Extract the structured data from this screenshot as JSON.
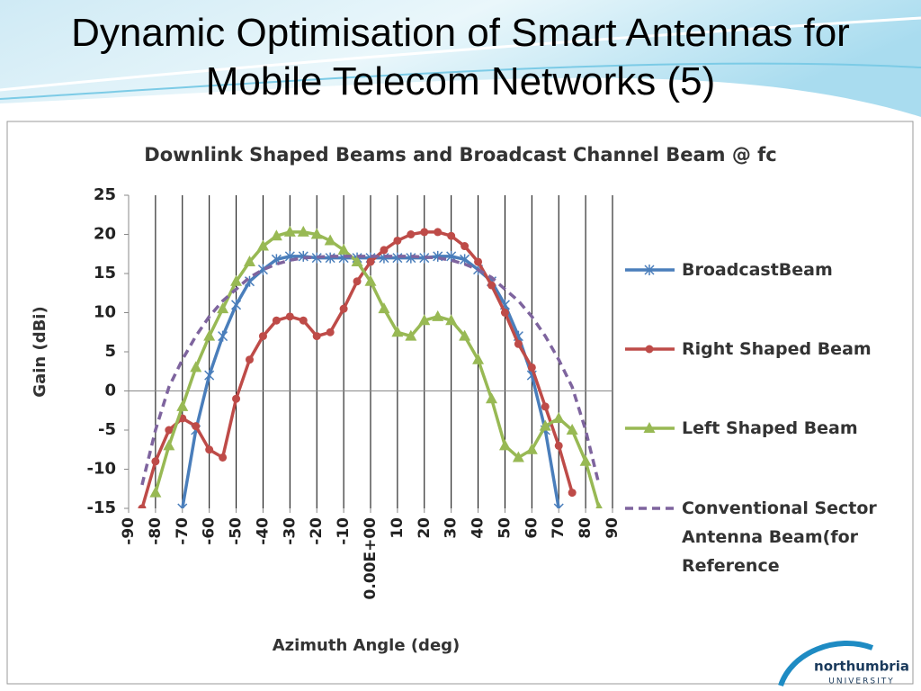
{
  "slide_title": "Dynamic Optimisation of Smart Antennas for Mobile Telecom Networks (5)",
  "logo": {
    "name": "northumbria",
    "sub": "UNIVERSITY"
  },
  "chart_data": {
    "type": "line",
    "title": "Downlink Shaped Beams and Broadcast Channel Beam @ fc",
    "x_label": "Azimuth Angle (deg)",
    "y_label": "Gain (dBi)",
    "x": [
      -85,
      -80,
      -75,
      -70,
      -65,
      -60,
      -55,
      -50,
      -45,
      -40,
      -35,
      -30,
      -25,
      -20,
      -15,
      -10,
      -5,
      0,
      5,
      10,
      15,
      20,
      25,
      30,
      35,
      40,
      45,
      50,
      55,
      60,
      65,
      70,
      75,
      80,
      85
    ],
    "xlim": [
      -90,
      90
    ],
    "xticks": [
      -90,
      -80,
      -70,
      -60,
      -50,
      -40,
      -30,
      -20,
      -10,
      {
        "value": 0,
        "label": "0.00E+00"
      },
      10,
      20,
      30,
      40,
      50,
      60,
      70,
      80,
      90
    ],
    "ylim": [
      -15,
      25
    ],
    "yticks": [
      -15,
      -10,
      -5,
      0,
      5,
      10,
      15,
      20,
      25
    ],
    "grid": "x",
    "series": [
      {
        "name": "BroadcastBeam",
        "color": "#4a7ebb",
        "marker": "asterisk",
        "dash": false,
        "values": [
          null,
          null,
          null,
          -15,
          -5,
          2,
          7,
          11,
          14,
          15.5,
          16.8,
          17.2,
          17.2,
          17,
          17,
          17,
          17,
          17,
          17,
          17,
          17,
          17,
          17.2,
          17.2,
          16.8,
          15.5,
          14,
          11,
          7,
          2,
          -5,
          -15,
          null,
          null,
          null
        ]
      },
      {
        "name": "Right Shaped Beam",
        "color": "#be4b48",
        "marker": "circle",
        "dash": false,
        "values": [
          -15,
          -9,
          -5,
          -3.5,
          -4.5,
          -7.5,
          -8.5,
          -1,
          4,
          7,
          9,
          9.5,
          9,
          7,
          7.5,
          10.5,
          14,
          16.5,
          18,
          19.2,
          20,
          20.3,
          20.3,
          19.8,
          18.5,
          16.5,
          13.5,
          10,
          6,
          3,
          -2,
          -7,
          -13,
          null,
          null
        ]
      },
      {
        "name": "Left Shaped Beam",
        "color": "#98b954",
        "marker": "triangle",
        "dash": false,
        "values": [
          null,
          -13,
          -7,
          -2,
          3,
          7,
          10.5,
          14,
          16.5,
          18.5,
          19.8,
          20.3,
          20.3,
          20,
          19.2,
          18,
          16.5,
          14,
          10.5,
          7.5,
          7,
          9,
          9.5,
          9,
          7,
          4,
          -1,
          -7,
          -8.5,
          -7.5,
          -4.5,
          -3.5,
          -5,
          -9,
          -15
        ]
      },
      {
        "name": "Conventional Sector Antenna Beam(for Reference",
        "color": "#7e649e",
        "marker": "none",
        "dash": true,
        "values": [
          -12,
          -5,
          0.5,
          4,
          7,
          9.5,
          11.5,
          13,
          14.5,
          15.5,
          16.2,
          16.7,
          17,
          17.1,
          17.2,
          17.2,
          17.2,
          17.2,
          17.2,
          17.2,
          17.2,
          17.1,
          17,
          16.7,
          16.2,
          15.5,
          14.5,
          13,
          11.5,
          9.5,
          7,
          4,
          0.5,
          -5,
          -12
        ]
      }
    ]
  }
}
